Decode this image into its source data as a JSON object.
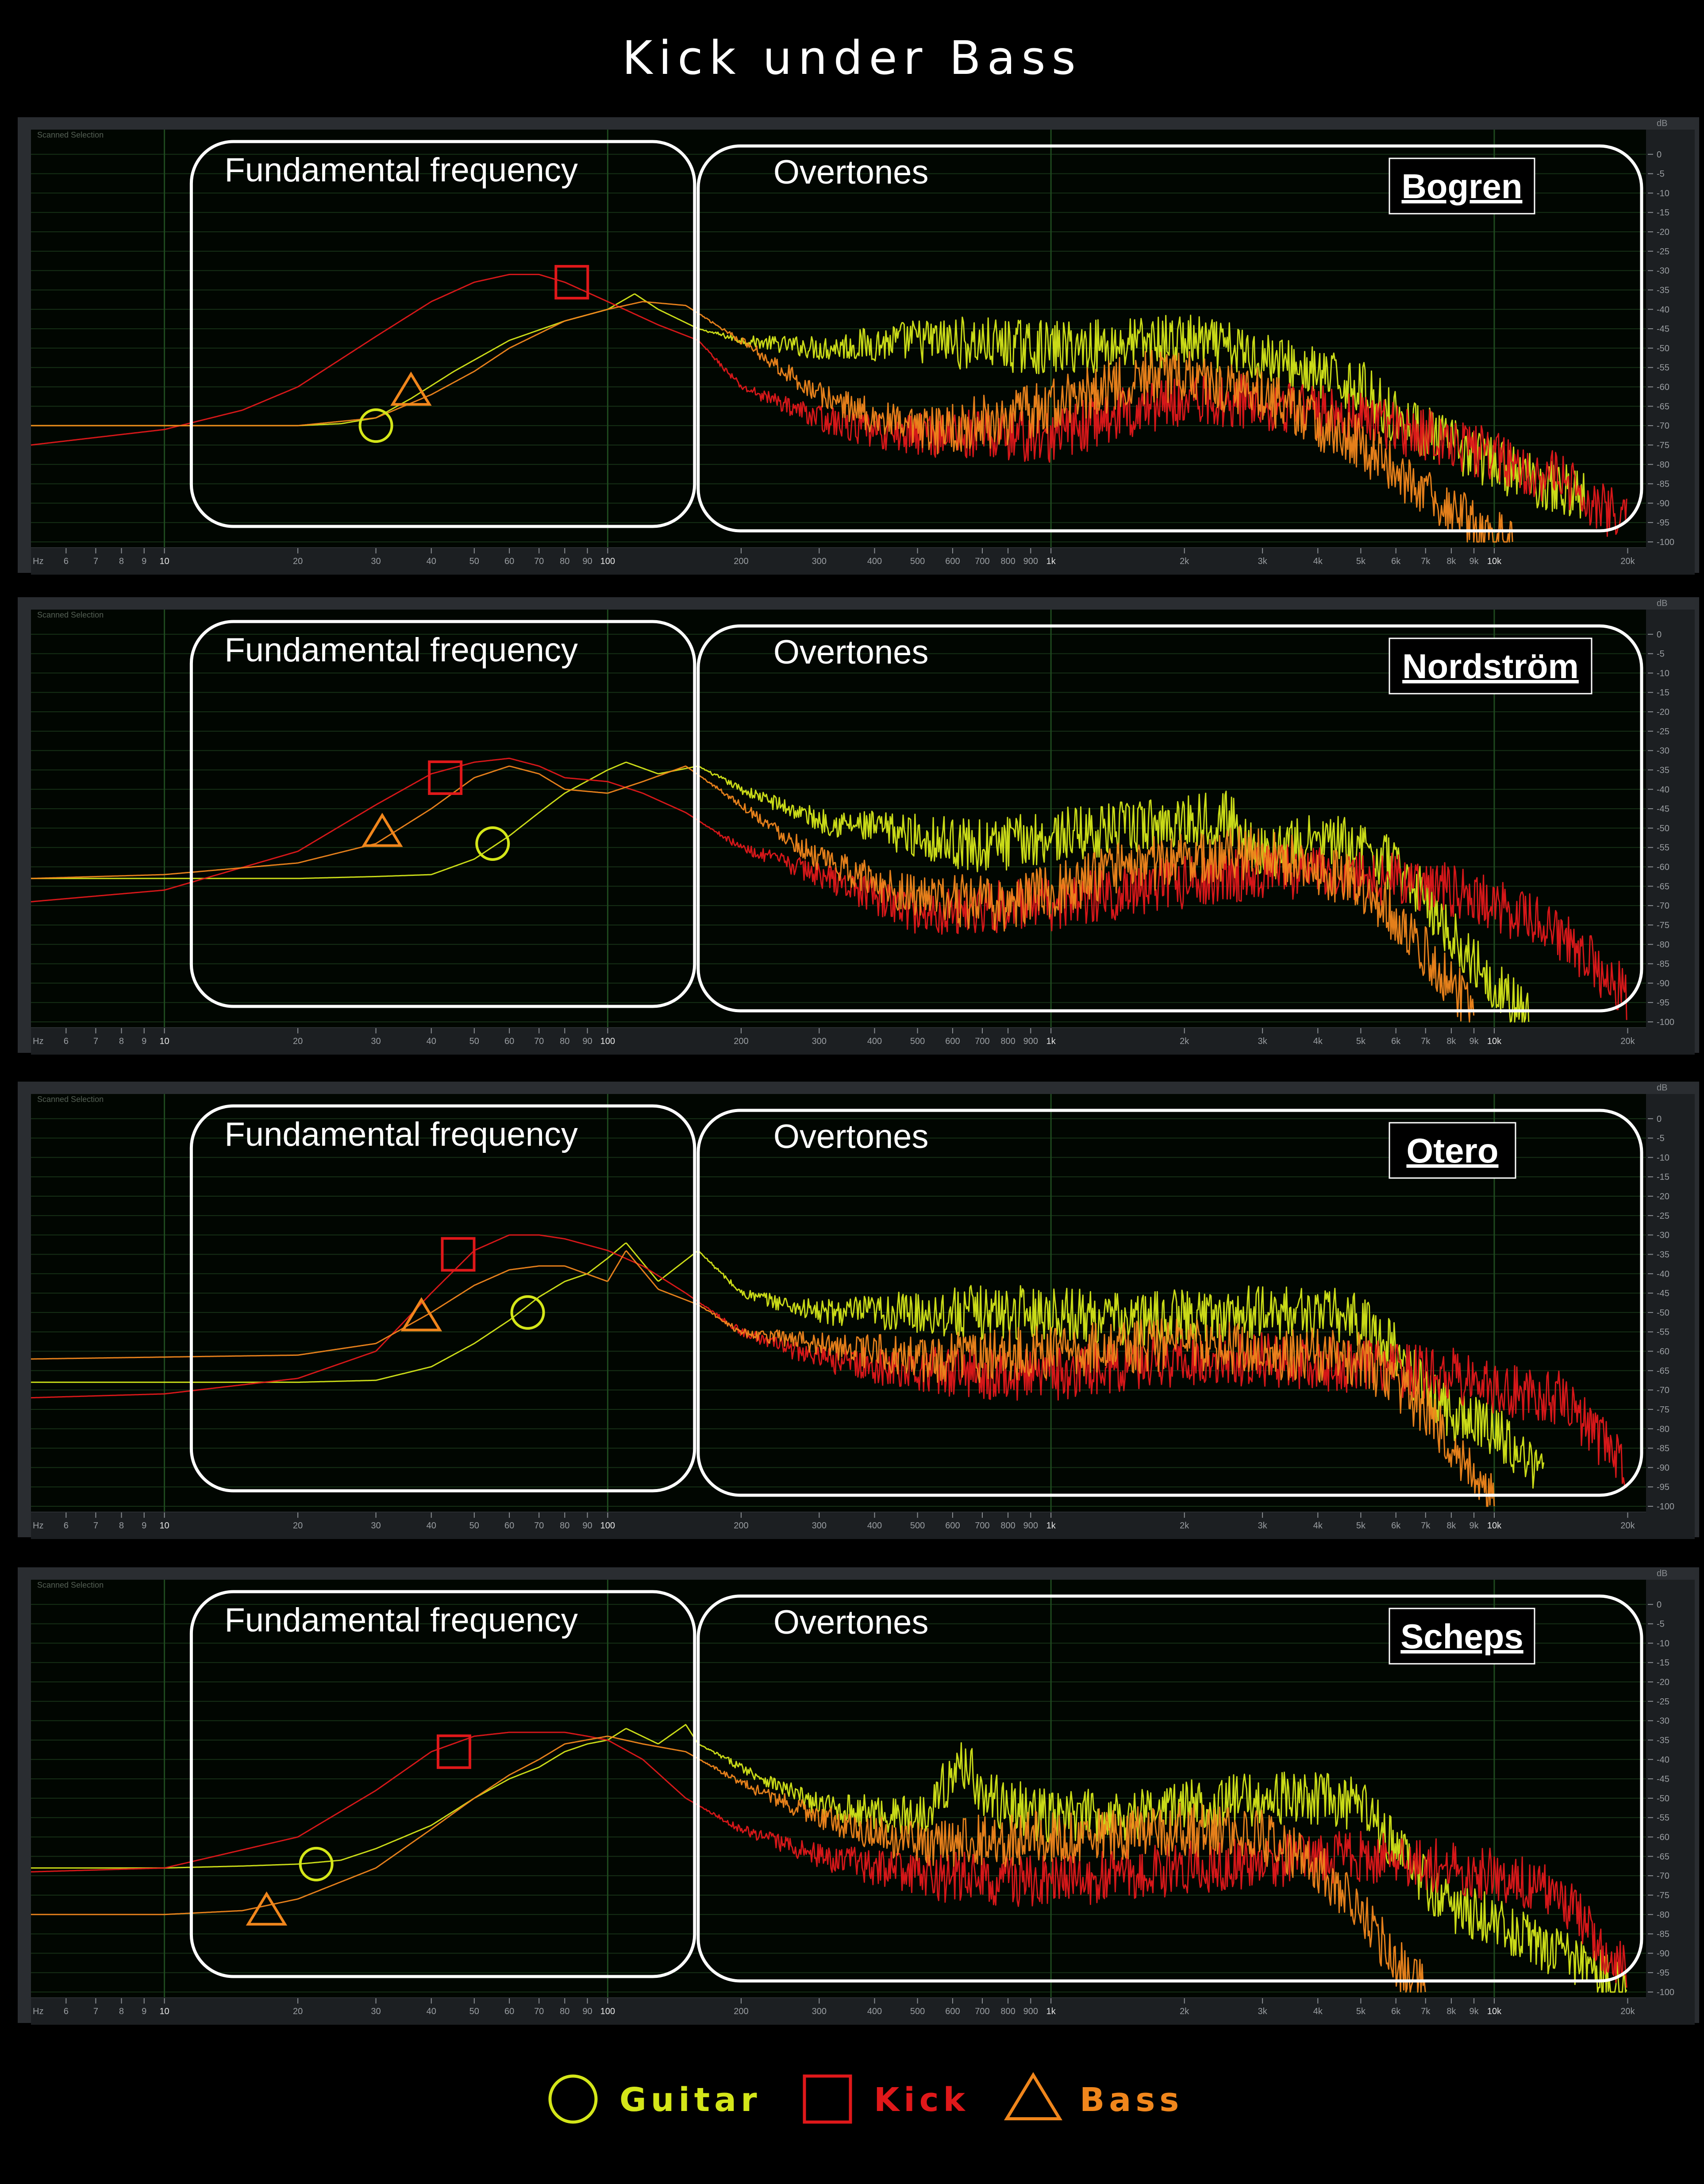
{
  "title": "Kick under Bass",
  "colors": {
    "guitar": "#d4e619",
    "kick": "#e0181a",
    "bass": "#f0861c",
    "annot": "#ffffff",
    "grid": "#163016",
    "panel_bg": "#010601"
  },
  "panel_common": {
    "watermark": "Scanned Selection",
    "fundamental_label": "Fundamental frequency",
    "overtones_label": "Overtones",
    "hz_label": "Hz",
    "db_label": "dB"
  },
  "chart_data": [
    {
      "type": "line",
      "engineer": "Bogren",
      "xscale": "log",
      "xlim": [
        5,
        22000
      ],
      "ylim": [
        -100,
        5
      ],
      "xticks": [
        6,
        7,
        8,
        9,
        10,
        20,
        30,
        40,
        50,
        60,
        70,
        80,
        90,
        100,
        200,
        300,
        400,
        500,
        600,
        700,
        800,
        900,
        1000,
        2000,
        3000,
        4000,
        5000,
        6000,
        7000,
        8000,
        9000,
        10000,
        20000
      ],
      "xticklabels": [
        "6",
        "7",
        "8",
        "9",
        "10",
        "20",
        "30",
        "40",
        "50",
        "60",
        "70",
        "80",
        "90",
        "100",
        "200",
        "300",
        "400",
        "500",
        "600",
        "700",
        "800",
        "900",
        "1k",
        "2k",
        "3k",
        "4k",
        "5k",
        "6k",
        "7k",
        "8k",
        "9k",
        "10k",
        "20k"
      ],
      "yticks": [
        0,
        -5,
        -10,
        -15,
        -20,
        -25,
        -30,
        -35,
        -40,
        -45,
        -50,
        -55,
        -60,
        -65,
        -70,
        -75,
        -80,
        -85,
        -90,
        -95,
        -100
      ],
      "series": [
        {
          "name": "Guitar",
          "x": [
            5,
            10,
            20,
            25,
            30,
            36,
            45,
            60,
            80,
            100,
            115,
            130,
            160,
            200,
            300,
            500,
            700,
            1000,
            2000,
            3000,
            4000,
            5000,
            6000,
            8000,
            10000,
            13000,
            16000
          ],
          "y": [
            -70,
            -70,
            -70,
            -69.5,
            -68,
            -63,
            -56,
            -48,
            -43,
            -40,
            -36,
            -40,
            -45,
            -48,
            -50,
            -48,
            -49,
            -50,
            -48,
            -52,
            -57,
            -60,
            -68,
            -75,
            -80,
            -85,
            -88
          ],
          "peak": {
            "x": 30,
            "y": -70
          }
        },
        {
          "name": "Kick",
          "x": [
            5,
            10,
            15,
            20,
            30,
            40,
            50,
            60,
            70,
            80,
            100,
            130,
            160,
            200,
            300,
            400,
            600,
            1000,
            1500,
            2000,
            3000,
            5000,
            8000,
            10000,
            14000,
            20000
          ],
          "y": [
            -75,
            -71,
            -66,
            -60,
            -47,
            -38,
            -33,
            -31,
            -31,
            -33,
            -38,
            -44,
            -48,
            -60,
            -68,
            -72,
            -72,
            -73,
            -66,
            -63,
            -64,
            -68,
            -74,
            -78,
            -84,
            -95
          ],
          "peak": {
            "x": 83,
            "y": -33
          }
        },
        {
          "name": "Bass",
          "x": [
            5,
            10,
            20,
            30,
            40,
            50,
            60,
            80,
            100,
            120,
            150,
            200,
            300,
            500,
            800,
            1000,
            1500,
            2000,
            3000,
            5000,
            7000,
            8000,
            9000,
            10000,
            11000
          ],
          "y": [
            -70,
            -70,
            -70,
            -68,
            -62,
            -56,
            -50,
            -43,
            -40,
            -38,
            -39,
            -48,
            -62,
            -72,
            -68,
            -65,
            -58,
            -57,
            -62,
            -75,
            -88,
            -92,
            -96,
            -99,
            -100
          ],
          "peak": {
            "x": 36,
            "y": -61
          }
        }
      ]
    },
    {
      "type": "line",
      "engineer": "Nordström",
      "xscale": "log",
      "xlim": [
        5,
        22000
      ],
      "ylim": [
        -100,
        5
      ],
      "xticks": [
        6,
        7,
        8,
        9,
        10,
        20,
        30,
        40,
        50,
        60,
        70,
        80,
        90,
        100,
        200,
        300,
        400,
        500,
        600,
        700,
        800,
        900,
        1000,
        2000,
        3000,
        4000,
        5000,
        6000,
        7000,
        8000,
        9000,
        10000,
        20000
      ],
      "xticklabels": [
        "6",
        "7",
        "8",
        "9",
        "10",
        "20",
        "30",
        "40",
        "50",
        "60",
        "70",
        "80",
        "90",
        "100",
        "200",
        "300",
        "400",
        "500",
        "600",
        "700",
        "800",
        "900",
        "1k",
        "2k",
        "3k",
        "4k",
        "5k",
        "6k",
        "7k",
        "8k",
        "9k",
        "10k",
        "20k"
      ],
      "yticks": [
        0,
        -5,
        -10,
        -15,
        -20,
        -25,
        -30,
        -35,
        -40,
        -45,
        -50,
        -55,
        -60,
        -65,
        -70,
        -75,
        -80,
        -85,
        -90,
        -95,
        -100
      ],
      "series": [
        {
          "name": "Guitar",
          "x": [
            5,
            10,
            20,
            30,
            40,
            50,
            60,
            70,
            80,
            100,
            110,
            130,
            160,
            200,
            300,
            500,
            700,
            1000,
            1500,
            2000,
            2500,
            3000,
            4000,
            5000,
            6000,
            7000,
            8000,
            10000,
            12000
          ],
          "y": [
            -63,
            -63,
            -63,
            -62.5,
            -62,
            -58,
            -52,
            -46,
            -41,
            -35,
            -33,
            -36,
            -34,
            -40,
            -48,
            -52,
            -55,
            -52,
            -50,
            -48,
            -47,
            -57,
            -53,
            -55,
            -60,
            -68,
            -78,
            -90,
            -100
          ],
          "peak": {
            "x": 55,
            "y": -54
          }
        },
        {
          "name": "Kick",
          "x": [
            5,
            10,
            20,
            30,
            40,
            50,
            60,
            70,
            80,
            100,
            120,
            150,
            200,
            300,
            500,
            800,
            1000,
            1500,
            2000,
            3000,
            5000,
            8000,
            10000,
            14000,
            20000
          ],
          "y": [
            -69,
            -66,
            -56,
            -44,
            -36,
            -33,
            -32,
            -34,
            -37,
            -38,
            -41,
            -46,
            -55,
            -62,
            -72,
            -70,
            -70,
            -66,
            -64,
            -61,
            -62,
            -66,
            -70,
            -77,
            -93
          ],
          "peak": {
            "x": 43,
            "y": -37
          }
        },
        {
          "name": "Bass",
          "x": [
            5,
            10,
            20,
            30,
            40,
            50,
            60,
            70,
            80,
            100,
            120,
            150,
            200,
            300,
            500,
            800,
            1000,
            1500,
            2000,
            3000,
            5000,
            6000,
            7000,
            8000,
            9000
          ],
          "y": [
            -63,
            -62,
            -59,
            -54,
            -45,
            -37,
            -34,
            -36,
            -40,
            -41,
            -38,
            -34,
            -44,
            -58,
            -68,
            -70,
            -66,
            -60,
            -58,
            -56,
            -65,
            -73,
            -82,
            -90,
            -97
          ],
          "peak": {
            "x": 31,
            "y": -51
          }
        }
      ]
    },
    {
      "type": "line",
      "engineer": "Otero",
      "xscale": "log",
      "xlim": [
        5,
        22000
      ],
      "ylim": [
        -100,
        5
      ],
      "xticks": [
        6,
        7,
        8,
        9,
        10,
        20,
        30,
        40,
        50,
        60,
        70,
        80,
        90,
        100,
        200,
        300,
        400,
        500,
        600,
        700,
        800,
        900,
        1000,
        2000,
        3000,
        4000,
        5000,
        6000,
        7000,
        8000,
        9000,
        10000,
        20000
      ],
      "xticklabels": [
        "6",
        "7",
        "8",
        "9",
        "10",
        "20",
        "30",
        "40",
        "50",
        "60",
        "70",
        "80",
        "90",
        "100",
        "200",
        "300",
        "400",
        "500",
        "600",
        "700",
        "800",
        "900",
        "1k",
        "2k",
        "3k",
        "4k",
        "5k",
        "6k",
        "7k",
        "8k",
        "9k",
        "10k",
        "20k"
      ],
      "yticks": [
        0,
        -5,
        -10,
        -15,
        -20,
        -25,
        -30,
        -35,
        -40,
        -45,
        -50,
        -55,
        -60,
        -65,
        -70,
        -75,
        -80,
        -85,
        -90,
        -95,
        -100
      ],
      "series": [
        {
          "name": "Guitar",
          "x": [
            5,
            10,
            20,
            30,
            40,
            50,
            60,
            70,
            80,
            90,
            100,
            110,
            130,
            160,
            200,
            300,
            500,
            700,
            1000,
            1500,
            2000,
            3000,
            4000,
            5000,
            6000,
            7000,
            8000,
            10000,
            13000
          ],
          "y": [
            -68,
            -68,
            -68,
            -67.5,
            -64,
            -58,
            -52,
            -46,
            -42,
            -40,
            -36,
            -32,
            -42,
            -34,
            -45,
            -50,
            -50,
            -50,
            -50,
            -52,
            -51,
            -50,
            -50,
            -52,
            -60,
            -70,
            -76,
            -80,
            -92
          ],
          "peak": {
            "x": 66,
            "y": -50
          }
        },
        {
          "name": "Kick",
          "x": [
            5,
            10,
            20,
            30,
            40,
            50,
            60,
            70,
            80,
            100,
            120,
            150,
            200,
            300,
            500,
            1000,
            2000,
            3000,
            5000,
            8000,
            10000,
            14000,
            20000
          ],
          "y": [
            -72,
            -71,
            -67,
            -60,
            -45,
            -34,
            -30,
            -30,
            -31,
            -34,
            -38,
            -45,
            -55,
            -62,
            -65,
            -66,
            -62,
            -62,
            -64,
            -66,
            -70,
            -72,
            -90
          ],
          "peak": {
            "x": 46,
            "y": -35
          }
        },
        {
          "name": "Bass",
          "x": [
            5,
            10,
            20,
            30,
            40,
            50,
            60,
            70,
            80,
            100,
            110,
            130,
            160,
            200,
            300,
            500,
            1000,
            2000,
            3000,
            5000,
            7000,
            8000,
            9000,
            10000
          ],
          "y": [
            -62,
            -61.5,
            -61,
            -58,
            -50,
            -43,
            -39,
            -38,
            -38,
            -42,
            -34,
            -44,
            -48,
            -55,
            -58,
            -62,
            -60,
            -58,
            -60,
            -62,
            -75,
            -85,
            -92,
            -99
          ],
          "peak": {
            "x": 38,
            "y": -51
          }
        }
      ]
    },
    {
      "type": "line",
      "engineer": "Scheps",
      "xscale": "log",
      "xlim": [
        5,
        22000
      ],
      "ylim": [
        -100,
        5
      ],
      "xticks": [
        6,
        7,
        8,
        9,
        10,
        20,
        30,
        40,
        50,
        60,
        70,
        80,
        90,
        100,
        200,
        300,
        400,
        500,
        600,
        700,
        800,
        900,
        1000,
        2000,
        3000,
        4000,
        5000,
        6000,
        7000,
        8000,
        9000,
        10000,
        20000
      ],
      "xticklabels": [
        "6",
        "7",
        "8",
        "9",
        "10",
        "20",
        "30",
        "40",
        "50",
        "60",
        "70",
        "80",
        "90",
        "100",
        "200",
        "300",
        "400",
        "500",
        "600",
        "700",
        "800",
        "900",
        "1k",
        "2k",
        "3k",
        "4k",
        "5k",
        "6k",
        "7k",
        "8k",
        "9k",
        "10k",
        "20k"
      ],
      "yticks": [
        0,
        -5,
        -10,
        -15,
        -20,
        -25,
        -30,
        -35,
        -40,
        -45,
        -50,
        -55,
        -60,
        -65,
        -70,
        -75,
        -80,
        -85,
        -90,
        -95,
        -100
      ],
      "series": [
        {
          "name": "Guitar",
          "x": [
            5,
            10,
            15,
            20,
            25,
            30,
            40,
            50,
            60,
            70,
            80,
            90,
            100,
            110,
            130,
            150,
            160,
            200,
            300,
            500,
            650,
            700,
            1000,
            1500,
            2000,
            3000,
            4000,
            5000,
            6000,
            7000,
            8000,
            10000,
            14000,
            20000
          ],
          "y": [
            -68,
            -68,
            -67.5,
            -67,
            -66,
            -63,
            -57,
            -50,
            -45,
            -42,
            -38,
            -36,
            -35,
            -32,
            -36,
            -31,
            -36,
            -42,
            -52,
            -55,
            -40,
            -50,
            -55,
            -54,
            -52,
            -50,
            -50,
            -52,
            -62,
            -72,
            -78,
            -82,
            -90,
            -99
          ],
          "peak": {
            "x": 22,
            "y": -67
          }
        },
        {
          "name": "Kick",
          "x": [
            5,
            10,
            20,
            30,
            40,
            50,
            60,
            70,
            80,
            90,
            100,
            120,
            150,
            200,
            300,
            500,
            1000,
            2000,
            3000,
            5000,
            8000,
            10000,
            14000,
            20000
          ],
          "y": [
            -69,
            -68,
            -60,
            -48,
            -38,
            -34,
            -33,
            -33,
            -33,
            -34,
            -35,
            -40,
            -50,
            -58,
            -65,
            -70,
            -72,
            -68,
            -66,
            -65,
            -68,
            -70,
            -75,
            -95
          ],
          "peak": {
            "x": 45,
            "y": -38
          }
        },
        {
          "name": "Bass",
          "x": [
            5,
            10,
            15,
            20,
            30,
            40,
            50,
            60,
            70,
            80,
            100,
            120,
            150,
            200,
            300,
            500,
            1000,
            2000,
            3000,
            4000,
            5000,
            6000,
            7000
          ],
          "y": [
            -80,
            -80,
            -79,
            -76,
            -68,
            -58,
            -50,
            -44,
            -40,
            -36,
            -34,
            -36,
            -38,
            -46,
            -55,
            -62,
            -60,
            -58,
            -60,
            -68,
            -80,
            -92,
            -100
          ],
          "peak": {
            "x": 17,
            "y": -79
          }
        }
      ]
    }
  ],
  "legend": [
    {
      "name": "Guitar",
      "marker": "circle"
    },
    {
      "name": "Kick",
      "marker": "square"
    },
    {
      "name": "Bass",
      "marker": "triangle"
    }
  ]
}
